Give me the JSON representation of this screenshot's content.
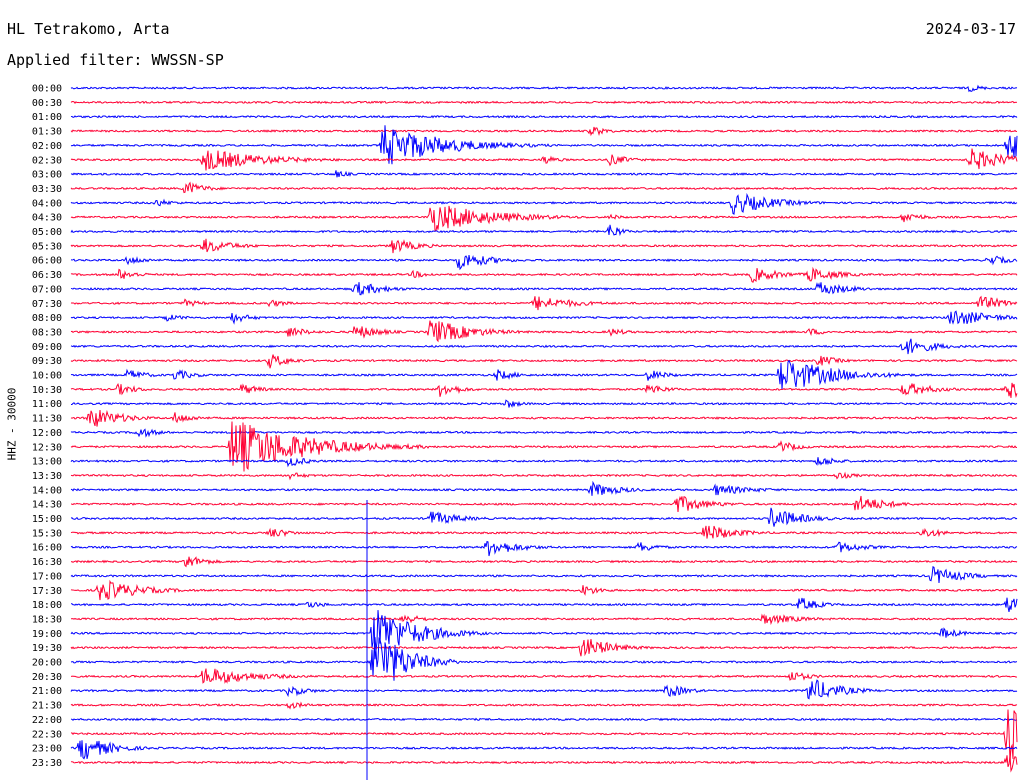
{
  "header": {
    "station": "HL Tetrakomo, Arta",
    "date": "2024-03-17",
    "filter": "Applied filter: WWSSN-SP"
  },
  "chart_data": {
    "type": "line",
    "title": "HL Tetrakomo, Arta",
    "subtitle": "Applied filter: WWSSN-SP",
    "ylabel": "HHZ - 30000",
    "colors": [
      "#0000ff",
      "#ff0033"
    ],
    "grid": false,
    "legend": "none",
    "rows": [
      "00:00",
      "00:30",
      "01:00",
      "01:30",
      "02:00",
      "02:30",
      "03:00",
      "03:30",
      "04:00",
      "04:30",
      "05:00",
      "05:30",
      "06:00",
      "06:30",
      "07:00",
      "07:30",
      "08:00",
      "08:30",
      "09:00",
      "09:30",
      "10:00",
      "10:30",
      "11:00",
      "11:30",
      "12:00",
      "12:30",
      "13:00",
      "13:30",
      "14:00",
      "14:30",
      "15:00",
      "15:30",
      "16:00",
      "16:30",
      "17:00",
      "17:30",
      "18:00",
      "18:30",
      "19:00",
      "19:30",
      "20:00",
      "20:30",
      "21:00",
      "21:30",
      "22:00",
      "22:30",
      "23:00",
      "23:30"
    ],
    "events": [
      [
        0,
        0.95,
        4,
        1.5
      ],
      [
        3,
        0.55,
        6,
        1.5
      ],
      [
        4,
        0.33,
        22,
        6
      ],
      [
        4,
        0.99,
        14,
        4
      ],
      [
        5,
        0.14,
        12,
        6
      ],
      [
        5,
        0.5,
        5,
        1.5
      ],
      [
        5,
        0.57,
        6,
        2
      ],
      [
        5,
        0.95,
        12,
        4
      ],
      [
        6,
        0.28,
        4,
        1.5
      ],
      [
        7,
        0.12,
        8,
        2
      ],
      [
        8,
        0.09,
        4,
        2
      ],
      [
        8,
        0.7,
        12,
        4
      ],
      [
        9,
        0.38,
        16,
        6
      ],
      [
        9,
        0.57,
        3,
        1.5
      ],
      [
        9,
        0.88,
        6,
        2
      ],
      [
        10,
        0.57,
        10,
        1
      ],
      [
        11,
        0.14,
        8,
        3
      ],
      [
        11,
        0.34,
        8,
        2.5
      ],
      [
        12,
        0.06,
        5,
        2
      ],
      [
        12,
        0.41,
        10,
        3
      ],
      [
        12,
        0.97,
        6,
        2
      ],
      [
        13,
        0.05,
        6,
        2
      ],
      [
        13,
        0.36,
        4,
        2
      ],
      [
        13,
        0.72,
        8,
        3
      ],
      [
        13,
        0.78,
        8,
        3
      ],
      [
        14,
        0.3,
        8,
        3
      ],
      [
        14,
        0.79,
        8,
        3
      ],
      [
        15,
        0.12,
        4,
        2
      ],
      [
        15,
        0.21,
        4,
        2
      ],
      [
        15,
        0.49,
        8,
        4
      ],
      [
        15,
        0.96,
        8,
        3
      ],
      [
        16,
        0.1,
        4,
        2
      ],
      [
        16,
        0.17,
        6,
        2
      ],
      [
        16,
        0.93,
        10,
        4
      ],
      [
        17,
        0.23,
        6,
        2
      ],
      [
        17,
        0.3,
        8,
        2.5
      ],
      [
        17,
        0.38,
        14,
        4
      ],
      [
        17,
        0.57,
        4,
        2
      ],
      [
        17,
        0.78,
        4,
        2
      ],
      [
        18,
        0.88,
        10,
        3
      ],
      [
        19,
        0.21,
        8,
        2
      ],
      [
        19,
        0.79,
        6,
        2
      ],
      [
        20,
        0.06,
        6,
        2
      ],
      [
        20,
        0.11,
        6,
        2
      ],
      [
        20,
        0.45,
        6,
        2
      ],
      [
        20,
        0.61,
        6,
        2
      ],
      [
        20,
        0.75,
        20,
        5
      ],
      [
        21,
        0.05,
        6,
        2
      ],
      [
        21,
        0.18,
        6,
        2
      ],
      [
        21,
        0.39,
        8,
        2
      ],
      [
        21,
        0.61,
        6,
        2
      ],
      [
        21,
        0.88,
        8,
        3
      ],
      [
        21,
        0.99,
        10,
        3
      ],
      [
        22,
        0.46,
        5,
        1.5
      ],
      [
        23,
        0.02,
        12,
        3
      ],
      [
        23,
        0.11,
        6,
        2
      ],
      [
        24,
        0.07,
        6,
        2
      ],
      [
        25,
        0.17,
        30,
        7
      ],
      [
        25,
        0.75,
        6,
        2
      ],
      [
        26,
        0.23,
        6,
        2
      ],
      [
        26,
        0.79,
        6,
        2
      ],
      [
        27,
        0.23,
        4,
        2
      ],
      [
        27,
        0.81,
        4,
        2
      ],
      [
        28,
        0.55,
        8,
        3
      ],
      [
        28,
        0.68,
        6,
        4
      ],
      [
        29,
        0.64,
        10,
        3
      ],
      [
        29,
        0.83,
        10,
        3
      ],
      [
        30,
        0.38,
        8,
        3
      ],
      [
        30,
        0.74,
        12,
        3
      ],
      [
        31,
        0.21,
        6,
        2
      ],
      [
        31,
        0.67,
        10,
        3
      ],
      [
        31,
        0.9,
        6,
        2
      ],
      [
        32,
        0.44,
        10,
        3
      ],
      [
        32,
        0.6,
        6,
        2
      ],
      [
        32,
        0.81,
        6,
        3
      ],
      [
        33,
        0.12,
        8,
        2
      ],
      [
        34,
        0.91,
        10,
        3
      ],
      [
        35,
        0.03,
        12,
        4
      ],
      [
        35,
        0.54,
        6,
        2
      ],
      [
        36,
        0.25,
        4,
        2
      ],
      [
        36,
        0.77,
        8,
        2
      ],
      [
        36,
        0.99,
        10,
        3
      ],
      [
        37,
        0.35,
        6,
        2
      ],
      [
        37,
        0.73,
        6,
        4
      ],
      [
        38,
        0.32,
        30,
        4
      ],
      [
        38,
        0.92,
        6,
        2
      ],
      [
        39,
        0.54,
        12,
        3
      ],
      [
        40,
        0.32,
        40,
        3
      ],
      [
        41,
        0.14,
        10,
        5
      ],
      [
        41,
        0.76,
        6,
        2
      ],
      [
        42,
        0.23,
        6,
        2
      ],
      [
        42,
        0.63,
        8,
        2
      ],
      [
        42,
        0.78,
        14,
        3
      ],
      [
        43,
        0.23,
        4,
        2
      ],
      [
        45,
        0.99,
        30,
        4
      ],
      [
        46,
        0.01,
        14,
        3
      ],
      [
        47,
        0.99,
        12,
        3
      ]
    ]
  }
}
